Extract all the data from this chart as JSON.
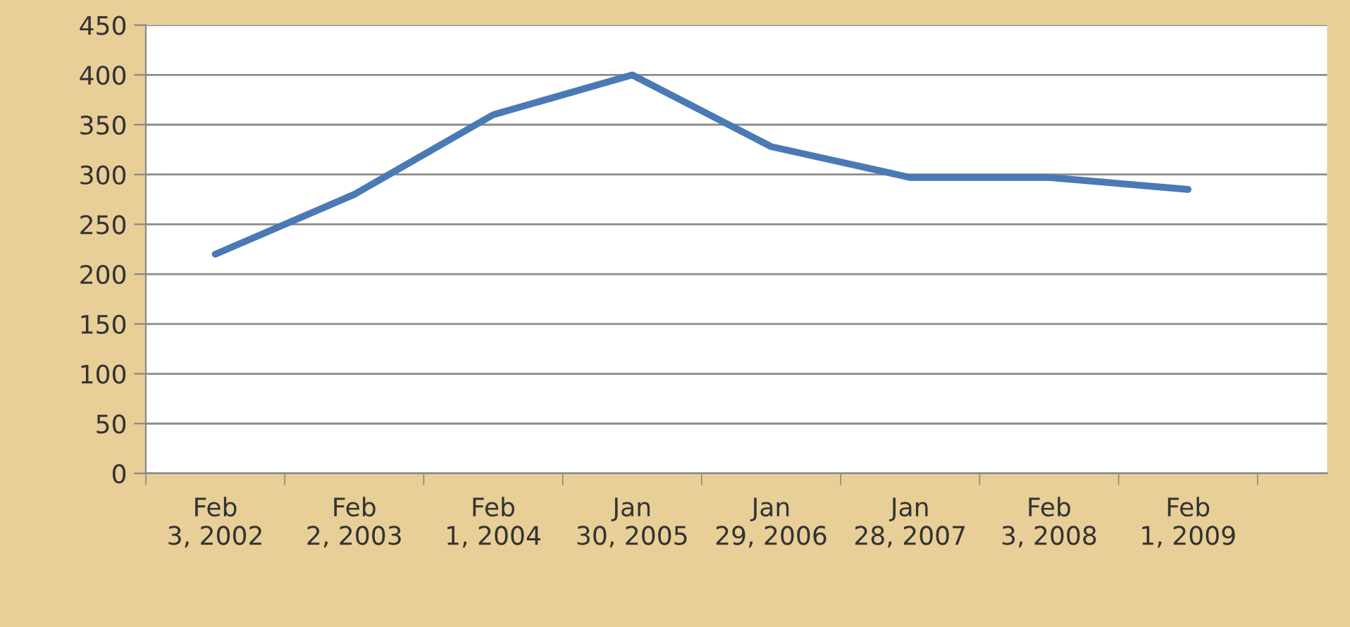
{
  "chart_data": {
    "type": "line",
    "categories": [
      "Feb\n3, 2002",
      "Feb\n2, 2003",
      "Feb\n1, 2004",
      "Jan\n30, 2005",
      "Jan\n29, 2006",
      "Jan\n28, 2007",
      "Feb\n3, 2008",
      "Feb\n1, 2009"
    ],
    "series": [
      {
        "color": "#4a7ab5",
        "values": [
          220,
          280,
          360,
          400,
          328,
          297,
          297,
          285
        ]
      }
    ],
    "ylim": [
      0,
      450
    ],
    "yticks": [
      0,
      50,
      100,
      150,
      200,
      250,
      300,
      350,
      400,
      450
    ],
    "grid": "y",
    "legend": false,
    "marker": "none",
    "line_style": "solid"
  }
}
